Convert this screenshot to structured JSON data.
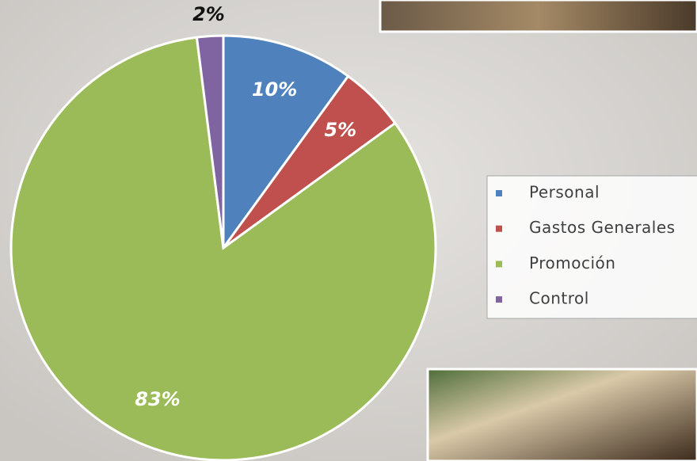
{
  "chart_data": {
    "type": "pie",
    "categories": [
      "Personal",
      "Gastos Generales",
      "Promoción",
      "Control"
    ],
    "values": [
      10,
      5,
      83,
      2
    ],
    "value_labels": [
      "10%",
      "5%",
      "83%",
      "2%"
    ],
    "colors": [
      "#4f81bd",
      "#c0504d",
      "#9bbb59",
      "#8064a2"
    ],
    "legend": "right"
  }
}
